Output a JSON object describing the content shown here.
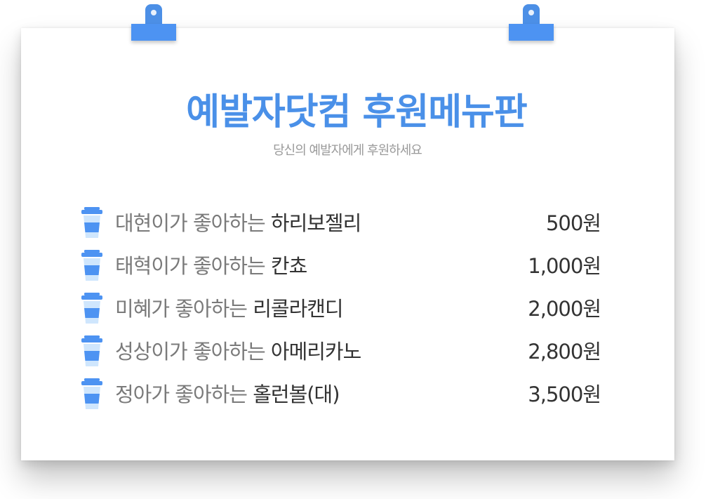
{
  "title": "예발자닷컴 후원메뉴판",
  "subtitle": "당신의 예발자에게 후원하세요",
  "colors": {
    "accent": "#4a90e8",
    "clip": "#4d93f2",
    "cup_body": "#4d93f2",
    "cup_light": "#cfe6fd",
    "muted_text": "#7a7a7a",
    "dark_text": "#333333"
  },
  "menu": {
    "items": [
      {
        "icon": "coffee-cup-icon",
        "who": "대현이가 좋아하는",
        "product": "하리보젤리",
        "price": "500원"
      },
      {
        "icon": "coffee-cup-icon",
        "who": "태혁이가 좋아하는",
        "product": "칸쵸",
        "price": "1,000원"
      },
      {
        "icon": "coffee-cup-icon",
        "who": "미혜가 좋아하는",
        "product": "리콜라캔디",
        "price": "2,000원"
      },
      {
        "icon": "coffee-cup-icon",
        "who": "성상이가 좋아하는",
        "product": "아메리카노",
        "price": "2,800원"
      },
      {
        "icon": "coffee-cup-icon",
        "who": "정아가 좋아하는",
        "product": "홀런볼(대)",
        "price": "3,500원"
      }
    ]
  }
}
